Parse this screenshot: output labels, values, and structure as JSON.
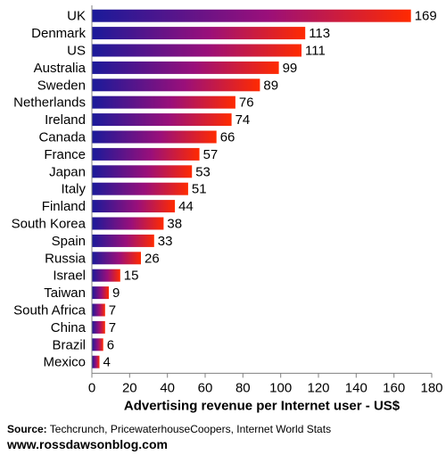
{
  "chart_data": {
    "type": "bar",
    "orientation": "horizontal",
    "categories": [
      "UK",
      "Denmark",
      "US",
      "Australia",
      "Sweden",
      "Netherlands",
      "Ireland",
      "Canada",
      "France",
      "Japan",
      "Italy",
      "Finland",
      "South Korea",
      "Spain",
      "Russia",
      "Israel",
      "Taiwan",
      "South Africa",
      "China",
      "Brazil",
      "Mexico"
    ],
    "values": [
      169,
      113,
      111,
      99,
      89,
      76,
      74,
      66,
      57,
      53,
      51,
      44,
      38,
      33,
      26,
      15,
      9,
      7,
      7,
      6,
      4
    ],
    "xlabel": "Advertising revenue per Internet user - US$",
    "xlim": [
      0,
      180
    ],
    "xticks": [
      0,
      20,
      40,
      60,
      80,
      100,
      120,
      140,
      160,
      180
    ],
    "grid": false,
    "bar_gradient": [
      "#1a1a9a",
      "#ff2a00"
    ]
  },
  "footer": {
    "source_label": "Source:",
    "source_text": " Techcrunch, PricewaterhouseCoopers, Internet World Stats",
    "url": "www.rossdawsonblog.com"
  }
}
